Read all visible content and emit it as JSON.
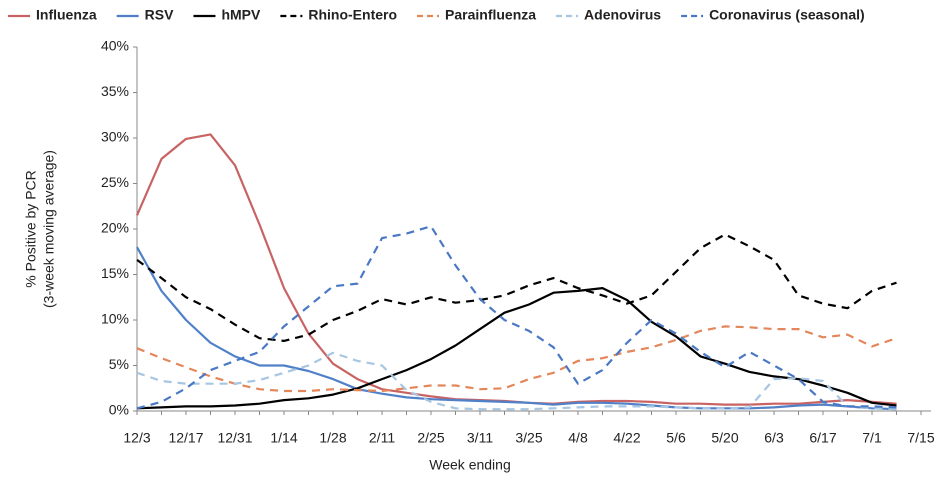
{
  "chart_data": {
    "type": "line",
    "ylabel": [
      "% Positive by PCR",
      "(3-week moving average)"
    ],
    "xlabel": "Week ending",
    "categories": [
      "12/3",
      null,
      "12/17",
      null,
      "12/31",
      null,
      "1/14",
      null,
      "1/28",
      null,
      "2/11",
      null,
      "2/25",
      null,
      "3/11",
      null,
      "3/25",
      null,
      "4/8",
      null,
      "4/22",
      null,
      "5/6",
      null,
      "5/20",
      null,
      "6/3",
      null,
      "6/17",
      null,
      "7/1",
      null,
      "7/15"
    ],
    "ylim": [
      0,
      40
    ],
    "yticks": [
      {
        "value": 0,
        "label": "0%"
      },
      {
        "value": 5,
        "label": "5%"
      },
      {
        "value": 10,
        "label": "10%"
      },
      {
        "value": 15,
        "label": "15%"
      },
      {
        "value": 20,
        "label": "20%"
      },
      {
        "value": 25,
        "label": "25%"
      },
      {
        "value": 30,
        "label": "30%"
      },
      {
        "value": 35,
        "label": "35%"
      },
      {
        "value": 40,
        "label": "40%"
      }
    ],
    "legend": "top",
    "series": [
      {
        "name": "Influenza",
        "color": "#c96363",
        "dash": false,
        "values": [
          21.5,
          27.7,
          29.9,
          30.4,
          27,
          20.5,
          13.5,
          8.5,
          5.2,
          3.5,
          2.4,
          2.0,
          1.6,
          1.3,
          1.2,
          1.1,
          0.9,
          0.8,
          1.0,
          1.1,
          1.1,
          1.0,
          0.8,
          0.8,
          0.7,
          0.7,
          0.8,
          0.8,
          1.0,
          1.2,
          1.0,
          0.8,
          null
        ]
      },
      {
        "name": "RSV",
        "color": "#5080c8",
        "dash": false,
        "values": [
          18,
          13.2,
          10,
          7.5,
          6.0,
          5.0,
          5.0,
          4.4,
          3.5,
          2.4,
          1.9,
          1.5,
          1.3,
          1.2,
          1.1,
          1.0,
          0.9,
          0.7,
          0.9,
          0.9,
          0.8,
          0.6,
          0.4,
          0.3,
          0.3,
          0.3,
          0.4,
          0.6,
          0.7,
          0.5,
          0.3,
          0.2,
          null
        ]
      },
      {
        "name": "hMPV",
        "color": "#000000",
        "dash": false,
        "values": [
          0.3,
          0.4,
          0.5,
          0.5,
          0.6,
          0.8,
          1.2,
          1.4,
          1.8,
          2.5,
          3.5,
          4.5,
          5.7,
          7.2,
          9.0,
          10.8,
          11.7,
          13.0,
          13.2,
          13.5,
          12.2,
          9.8,
          8.2,
          6.0,
          5.2,
          4.3,
          3.8,
          3.5,
          2.8,
          2.0,
          0.9,
          0.6,
          null
        ]
      },
      {
        "name": "Rhino-Entero",
        "color": "#000000",
        "dash": true,
        "values": [
          16.6,
          14.6,
          12.5,
          11.2,
          9.5,
          8.0,
          7.7,
          8.4,
          10.0,
          11.0,
          12.3,
          11.7,
          12.5,
          11.9,
          12.2,
          12.7,
          13.8,
          14.6,
          13.5,
          12.7,
          11.8,
          12.7,
          15.3,
          17.9,
          19.4,
          18.1,
          16.6,
          12.7,
          11.8,
          11.3,
          13.2,
          14.1,
          null
        ]
      },
      {
        "name": "Parainfluenza",
        "color": "#e3865a",
        "dash": true,
        "values": [
          6.9,
          5.8,
          4.8,
          3.8,
          3.0,
          2.4,
          2.2,
          2.2,
          2.4,
          2.3,
          2.2,
          2.5,
          2.8,
          2.8,
          2.4,
          2.5,
          3.5,
          4.2,
          5.5,
          5.8,
          6.5,
          7.0,
          7.8,
          8.8,
          9.3,
          9.2,
          9.0,
          9.0,
          8.1,
          8.4,
          7.1,
          8.0,
          null
        ]
      },
      {
        "name": "Adenovirus",
        "color": "#a6c6e2",
        "dash": true,
        "values": [
          4.2,
          3.3,
          3.0,
          3.0,
          3.0,
          3.4,
          4.2,
          5.0,
          6.4,
          5.5,
          5.0,
          2.3,
          1.0,
          0.3,
          0.2,
          0.2,
          0.2,
          0.3,
          0.4,
          0.5,
          0.5,
          0.5,
          0.4,
          0.3,
          0.3,
          0.4,
          3.5,
          3.6,
          3.3,
          0.5,
          0.3,
          0.2,
          null
        ]
      },
      {
        "name": "Coronavirus (seasonal)",
        "color": "#4a78c4",
        "dash": true,
        "values": [
          0.3,
          1.0,
          2.5,
          4.5,
          5.5,
          6.5,
          9.3,
          11.5,
          13.7,
          14.0,
          19.0,
          19.5,
          20.3,
          16.0,
          12.3,
          10.0,
          8.8,
          7.0,
          3.0,
          4.5,
          7.5,
          10.0,
          8.5,
          6.5,
          4.8,
          6.5,
          5.0,
          3.5,
          1.0,
          0.5,
          0.5,
          0.4,
          null
        ]
      }
    ]
  }
}
